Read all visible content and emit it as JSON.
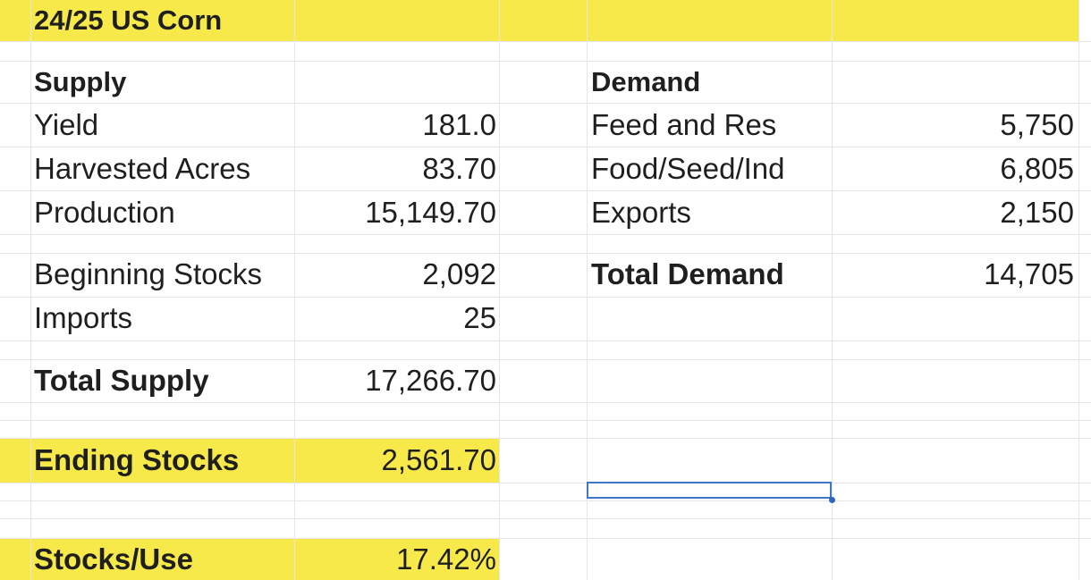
{
  "sheet": {
    "title": "24/25 US Corn",
    "supply": {
      "header": "Supply",
      "yield_label": "Yield",
      "yield_value": "181.0",
      "harvested_label": "Harvested Acres",
      "harvested_value": "83.70",
      "production_label": "Production",
      "production_value": "15,149.70",
      "beginning_label": "Beginning Stocks",
      "beginning_value": "2,092",
      "imports_label": "Imports",
      "imports_value": "25",
      "total_label": "Total Supply",
      "total_value": "17,266.70"
    },
    "demand": {
      "header": "Demand",
      "feed_label": "Feed and Res",
      "feed_value": "5,750",
      "food_label": "Food/Seed/Ind",
      "food_value": "6,805",
      "exports_label": "Exports",
      "exports_value": "2,150",
      "total_label": "Total Demand",
      "total_value": "14,705"
    },
    "ending": {
      "label": "Ending Stocks",
      "value": "2,561.70"
    },
    "stocks_use": {
      "label": "Stocks/Use",
      "value": "17.42%"
    }
  },
  "colors": {
    "highlight": "#f7e94a",
    "selection": "#3f78c9",
    "gridline": "#e6e6e6"
  }
}
